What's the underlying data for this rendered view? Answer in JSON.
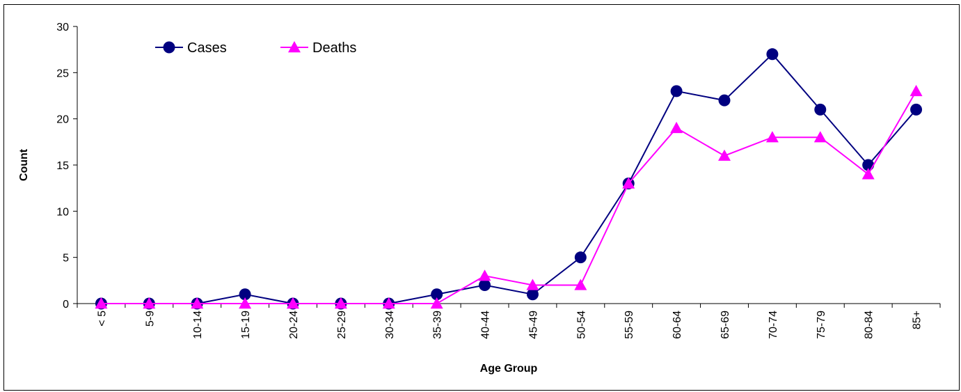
{
  "chart_data": {
    "type": "line",
    "title": "",
    "xlabel": "Age Group",
    "ylabel": "Count",
    "ylim": [
      0,
      30
    ],
    "yticks": [
      0,
      5,
      10,
      15,
      20,
      25,
      30
    ],
    "categories": [
      "< 5",
      "5-9",
      "10-14",
      "15-19",
      "20-24",
      "25-29",
      "30-34",
      "35-39",
      "40-44",
      "45-49",
      "50-54",
      "55-59",
      "60-64",
      "65-69",
      "70-74",
      "75-79",
      "80-84",
      "85+"
    ],
    "series": [
      {
        "name": "Cases",
        "color": "#000080",
        "marker": "circle",
        "values": [
          0,
          0,
          0,
          1,
          0,
          0,
          0,
          1,
          2,
          1,
          5,
          13,
          23,
          22,
          27,
          21,
          15,
          21
        ]
      },
      {
        "name": "Deaths",
        "color": "#FF00FF",
        "marker": "triangle",
        "values": [
          0,
          0,
          0,
          0,
          0,
          0,
          0,
          0,
          3,
          2,
          2,
          13,
          19,
          16,
          18,
          18,
          14,
          23
        ]
      }
    ],
    "legend_position": "top-left",
    "grid": false
  }
}
